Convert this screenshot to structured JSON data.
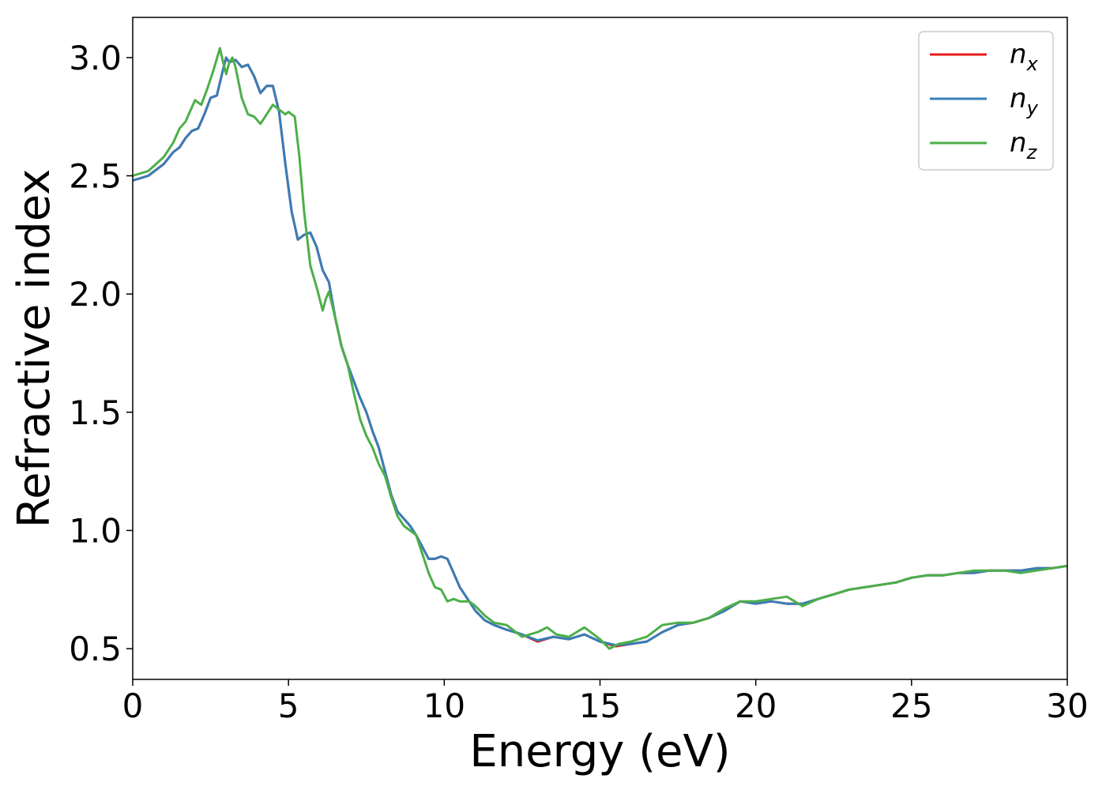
{
  "chart_data": {
    "type": "line",
    "title": "",
    "xlabel": "Energy (eV)",
    "ylabel": "Refractive index",
    "xlim": [
      0,
      30
    ],
    "ylim": [
      0.37,
      3.17
    ],
    "xticks": [
      0,
      5,
      10,
      15,
      20,
      25,
      30
    ],
    "xtick_labels": [
      "0",
      "5",
      "10",
      "15",
      "20",
      "25",
      "30"
    ],
    "yticks": [
      0.5,
      1.0,
      1.5,
      2.0,
      2.5,
      3.0
    ],
    "ytick_labels": [
      "0.5",
      "1.0",
      "1.5",
      "2.0",
      "2.5",
      "3.0"
    ],
    "grid": false,
    "legend_position": "top-right",
    "series": [
      {
        "name": "n",
        "subscript": "x",
        "color": "#e41a1c",
        "x": [
          0,
          0.5,
          1.0,
          1.3,
          1.5,
          1.7,
          1.9,
          2.1,
          2.3,
          2.5,
          2.7,
          2.9,
          3.0,
          3.1,
          3.3,
          3.5,
          3.7,
          3.9,
          4.1,
          4.3,
          4.5,
          4.7,
          4.9,
          5.1,
          5.3,
          5.5,
          5.7,
          5.9,
          6.1,
          6.3,
          6.5,
          6.7,
          6.9,
          7.1,
          7.3,
          7.5,
          7.7,
          7.9,
          8.1,
          8.3,
          8.5,
          8.7,
          8.9,
          9.1,
          9.3,
          9.5,
          9.7,
          9.9,
          10.1,
          10.3,
          10.5,
          10.8,
          11.0,
          11.3,
          11.6,
          12.0,
          12.5,
          13.0,
          13.5,
          14.0,
          14.5,
          15.0,
          15.5,
          16.0,
          16.5,
          17.0,
          17.5,
          18.0,
          18.5,
          19.0,
          19.5,
          20.0,
          20.5,
          21.0,
          21.5,
          22.0,
          22.5,
          23.0,
          23.5,
          24.0,
          24.5,
          25.0,
          25.5,
          26.0,
          26.5,
          27.0,
          27.5,
          28.0,
          28.5,
          29.0,
          29.5,
          30.0
        ],
        "y": [
          2.48,
          2.5,
          2.55,
          2.6,
          2.62,
          2.66,
          2.69,
          2.7,
          2.76,
          2.83,
          2.84,
          2.95,
          3.0,
          2.98,
          2.99,
          2.96,
          2.97,
          2.92,
          2.85,
          2.88,
          2.88,
          2.77,
          2.55,
          2.35,
          2.23,
          2.25,
          2.26,
          2.2,
          2.1,
          2.05,
          1.9,
          1.78,
          1.7,
          1.63,
          1.56,
          1.5,
          1.42,
          1.35,
          1.25,
          1.15,
          1.08,
          1.05,
          1.02,
          0.98,
          0.93,
          0.88,
          0.88,
          0.89,
          0.88,
          0.82,
          0.76,
          0.7,
          0.66,
          0.62,
          0.6,
          0.58,
          0.56,
          0.53,
          0.55,
          0.54,
          0.56,
          0.53,
          0.51,
          0.52,
          0.53,
          0.57,
          0.6,
          0.61,
          0.63,
          0.66,
          0.7,
          0.69,
          0.7,
          0.69,
          0.69,
          0.71,
          0.73,
          0.75,
          0.76,
          0.77,
          0.78,
          0.8,
          0.81,
          0.81,
          0.82,
          0.82,
          0.83,
          0.83,
          0.83,
          0.84,
          0.84,
          0.85
        ]
      },
      {
        "name": "n",
        "subscript": "y",
        "color": "#377eb8",
        "x": [
          0,
          0.5,
          1.0,
          1.3,
          1.5,
          1.7,
          1.9,
          2.1,
          2.3,
          2.5,
          2.7,
          2.9,
          3.0,
          3.1,
          3.3,
          3.5,
          3.7,
          3.9,
          4.1,
          4.3,
          4.5,
          4.7,
          4.9,
          5.1,
          5.3,
          5.5,
          5.7,
          5.9,
          6.1,
          6.3,
          6.5,
          6.7,
          6.9,
          7.1,
          7.3,
          7.5,
          7.7,
          7.9,
          8.1,
          8.3,
          8.5,
          8.7,
          8.9,
          9.1,
          9.3,
          9.5,
          9.7,
          9.9,
          10.1,
          10.3,
          10.5,
          10.8,
          11.0,
          11.3,
          11.6,
          12.0,
          12.5,
          13.0,
          13.5,
          14.0,
          14.5,
          15.0,
          15.5,
          16.0,
          16.5,
          17.0,
          17.5,
          18.0,
          18.5,
          19.0,
          19.5,
          20.0,
          20.5,
          21.0,
          21.5,
          22.0,
          22.5,
          23.0,
          23.5,
          24.0,
          24.5,
          25.0,
          25.5,
          26.0,
          26.5,
          27.0,
          27.5,
          28.0,
          28.5,
          29.0,
          29.5,
          30.0
        ],
        "y": [
          2.48,
          2.5,
          2.55,
          2.6,
          2.62,
          2.66,
          2.69,
          2.7,
          2.76,
          2.83,
          2.84,
          2.95,
          3.0,
          2.98,
          2.99,
          2.96,
          2.97,
          2.92,
          2.85,
          2.88,
          2.88,
          2.77,
          2.55,
          2.35,
          2.23,
          2.25,
          2.26,
          2.2,
          2.1,
          2.05,
          1.9,
          1.78,
          1.7,
          1.63,
          1.56,
          1.5,
          1.42,
          1.35,
          1.25,
          1.15,
          1.08,
          1.05,
          1.02,
          0.98,
          0.93,
          0.88,
          0.88,
          0.89,
          0.88,
          0.82,
          0.76,
          0.7,
          0.66,
          0.62,
          0.6,
          0.58,
          0.56,
          0.535,
          0.55,
          0.54,
          0.56,
          0.53,
          0.515,
          0.52,
          0.53,
          0.57,
          0.6,
          0.61,
          0.63,
          0.66,
          0.7,
          0.69,
          0.7,
          0.69,
          0.69,
          0.71,
          0.73,
          0.75,
          0.76,
          0.77,
          0.78,
          0.8,
          0.81,
          0.81,
          0.82,
          0.82,
          0.83,
          0.83,
          0.83,
          0.84,
          0.84,
          0.85
        ]
      },
      {
        "name": "n",
        "subscript": "z",
        "color": "#4daf4a",
        "x": [
          0,
          0.5,
          1.0,
          1.3,
          1.5,
          1.7,
          1.9,
          2.0,
          2.2,
          2.4,
          2.6,
          2.8,
          2.9,
          3.0,
          3.1,
          3.2,
          3.3,
          3.5,
          3.7,
          3.9,
          4.1,
          4.3,
          4.5,
          4.7,
          4.9,
          5.0,
          5.1,
          5.2,
          5.35,
          5.5,
          5.7,
          5.9,
          6.0,
          6.1,
          6.2,
          6.3,
          6.5,
          6.7,
          6.9,
          7.1,
          7.3,
          7.5,
          7.7,
          7.9,
          8.1,
          8.3,
          8.5,
          8.7,
          8.9,
          9.1,
          9.3,
          9.5,
          9.7,
          9.9,
          10.1,
          10.3,
          10.5,
          10.8,
          11.0,
          11.3,
          11.6,
          12.0,
          12.5,
          13.0,
          13.3,
          13.6,
          14.0,
          14.5,
          15.0,
          15.3,
          15.6,
          16.0,
          16.5,
          17.0,
          17.5,
          18.0,
          18.5,
          19.0,
          19.5,
          20.0,
          20.5,
          21.0,
          21.5,
          22.0,
          22.5,
          23.0,
          23.5,
          24.0,
          24.5,
          25.0,
          25.5,
          26.0,
          26.5,
          27.0,
          27.5,
          28.0,
          28.5,
          29.0,
          29.5,
          30.0
        ],
        "y": [
          2.5,
          2.52,
          2.58,
          2.64,
          2.7,
          2.73,
          2.79,
          2.82,
          2.8,
          2.87,
          2.95,
          3.04,
          2.98,
          2.93,
          2.98,
          3.0,
          2.96,
          2.83,
          2.76,
          2.75,
          2.72,
          2.76,
          2.8,
          2.78,
          2.76,
          2.77,
          2.76,
          2.75,
          2.58,
          2.35,
          2.12,
          2.03,
          1.98,
          1.93,
          1.98,
          2.01,
          1.9,
          1.78,
          1.7,
          1.58,
          1.47,
          1.4,
          1.35,
          1.28,
          1.23,
          1.14,
          1.06,
          1.02,
          1.0,
          0.98,
          0.9,
          0.82,
          0.76,
          0.75,
          0.7,
          0.71,
          0.7,
          0.7,
          0.68,
          0.64,
          0.61,
          0.6,
          0.55,
          0.57,
          0.59,
          0.56,
          0.55,
          0.59,
          0.54,
          0.5,
          0.52,
          0.53,
          0.55,
          0.6,
          0.61,
          0.61,
          0.63,
          0.67,
          0.7,
          0.7,
          0.71,
          0.72,
          0.68,
          0.71,
          0.73,
          0.75,
          0.76,
          0.77,
          0.78,
          0.8,
          0.81,
          0.81,
          0.82,
          0.83,
          0.83,
          0.83,
          0.82,
          0.83,
          0.84,
          0.85
        ]
      }
    ]
  }
}
